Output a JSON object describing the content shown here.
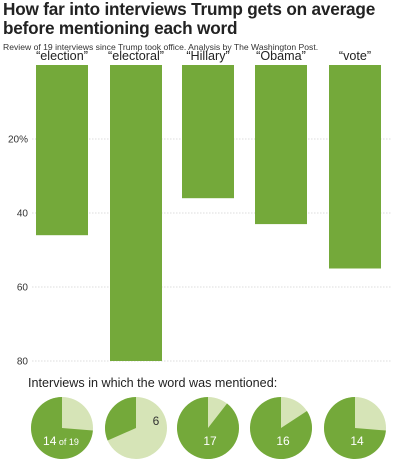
{
  "title": "How far into interviews Trump gets on average before mentioning each word",
  "subtitle": "Review of 19 interviews since Trump took office. Analysis by The Washington Post.",
  "colors": {
    "bar": "#74a93a",
    "pie_light": "#d6e4b7",
    "grid": "#dddddd",
    "axis_text": "#333333"
  },
  "chart_data": [
    {
      "type": "bar",
      "categories": [
        "“election”",
        "“electoral”",
        "“Hillary”",
        "“Obama”",
        "“vote”"
      ],
      "values": [
        46,
        80,
        36,
        43,
        55
      ],
      "ylim": [
        0,
        80
      ],
      "y_inverted": true,
      "y_ticks": [
        20,
        40,
        60,
        80
      ],
      "y_tick_labels": [
        "20%",
        "40",
        "60",
        "80"
      ],
      "grid": true
    },
    {
      "type": "pie",
      "title": "Interviews in which the word was mentioned:",
      "total": 19,
      "slices": [
        {
          "category": "“election”",
          "mentioned": 14,
          "label": "14",
          "label_suffix": "of 19"
        },
        {
          "category": "“electoral”",
          "mentioned": 6,
          "label": "6"
        },
        {
          "category": "“Hillary”",
          "mentioned": 17,
          "label": "17"
        },
        {
          "category": "“Obama”",
          "mentioned": 16,
          "label": "16"
        },
        {
          "category": "“vote”",
          "mentioned": 14,
          "label": "14"
        }
      ]
    }
  ]
}
